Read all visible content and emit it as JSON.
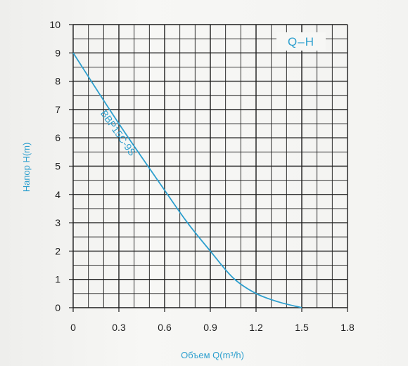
{
  "chart_data": {
    "type": "line",
    "legend_label": "Q–H",
    "xlabel": "Объем Q(m³/h)",
    "ylabel": "Напор H(m)",
    "xlim": [
      0,
      1.8
    ],
    "ylim": [
      0,
      10
    ],
    "x_ticks": [
      "0",
      "0.3",
      "0.6",
      "0.9",
      "1.2",
      "1.5",
      "1.8"
    ],
    "y_ticks": [
      "0",
      "1",
      "2",
      "3",
      "4",
      "5",
      "6",
      "7",
      "8",
      "9",
      "10"
    ],
    "grid": true,
    "legend_position": "top-right",
    "series": [
      {
        "name": "BBP15C-9S",
        "x": [
          0,
          0.3,
          0.6,
          0.75,
          0.9,
          1.05,
          1.2,
          1.35,
          1.5
        ],
        "y": [
          9,
          6.5,
          4.15,
          3.0,
          2.0,
          1.05,
          0.5,
          0.2,
          0.0
        ]
      }
    ],
    "colors": {
      "curve": "#2d9fce",
      "grid": "#1c1c1c",
      "axis_label": "#2d9fce"
    }
  }
}
